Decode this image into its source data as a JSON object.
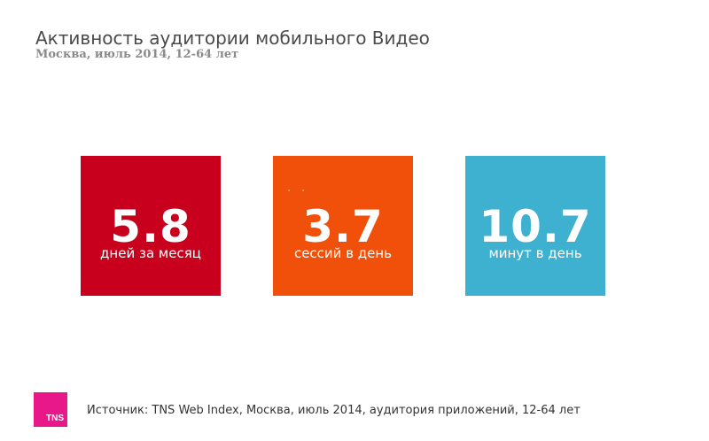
{
  "header": {
    "title": "Активность аудитории мобильного Видео",
    "subtitle": "Москва, июль 2014, 12-64 лет"
  },
  "tiles": [
    {
      "value": "5.8",
      "label": "дней за месяц",
      "color": "#c8001e"
    },
    {
      "value": "3.7",
      "label": "сессий в день",
      "color": "#f1500a"
    },
    {
      "value": "10.7",
      "label": "минут в день",
      "color": "#3db1cf"
    }
  ],
  "footer": {
    "logo_text": "TNS",
    "logo_color": "#e8178a",
    "source": "Источник: TNS Web Index, Москва, июль 2014, аудитория приложений, 12-64 лет"
  }
}
